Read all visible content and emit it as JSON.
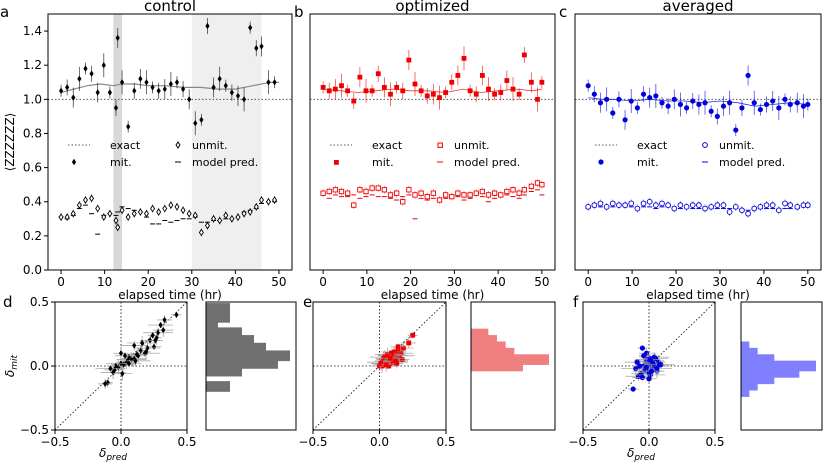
{
  "chart_data": [
    {
      "panel_label": "a",
      "type": "scatter",
      "title": "control",
      "xlabel": "elapsed time (hr)",
      "ylabel": "⟨ZZZZZZ⟩",
      "xlim": [
        -3,
        53
      ],
      "ylim": [
        0,
        1.5
      ],
      "xticks": [
        "0",
        "10",
        "20",
        "30",
        "40",
        "50"
      ],
      "yticks": [
        "0.0",
        "0.2",
        "0.4",
        "0.6",
        "0.8",
        "1.0",
        "1.2",
        "1.4"
      ],
      "color": "#000000",
      "shaded_regions": [
        [
          12,
          14
        ],
        [
          30,
          46
        ]
      ],
      "exact": 1.0,
      "legend": {
        "exact": "exact",
        "unmit": "unmit.",
        "mit": "mit.",
        "model": "model pred."
      },
      "x": [
        0,
        1.4,
        2.8,
        4.2,
        5.6,
        7,
        8.4,
        9.8,
        11.2,
        12.6,
        13,
        14,
        15.4,
        16.8,
        18.2,
        19.6,
        21,
        22.4,
        23.8,
        25.2,
        26.6,
        28,
        29.4,
        30.8,
        32.2,
        33.6,
        35,
        36.4,
        37.8,
        39.2,
        40.6,
        42,
        43.4,
        44.8,
        46,
        47.6,
        49
      ],
      "mit": [
        1.05,
        1.07,
        1.01,
        1.12,
        1.18,
        1.15,
        1.04,
        1.2,
        1.04,
        0.95,
        1.36,
        1.1,
        0.84,
        1.05,
        1.12,
        1.1,
        1.07,
        1.05,
        1.06,
        1.09,
        1.1,
        1.06,
        1.0,
        0.86,
        0.88,
        1.43,
        1.07,
        1.12,
        1.08,
        1.04,
        1.02,
        1.0,
        1.42,
        1.3,
        1.31,
        1.1,
        1.1
      ],
      "unmit": [
        0.31,
        0.31,
        0.33,
        0.38,
        0.41,
        0.42,
        0.36,
        0.31,
        0.33,
        0.29,
        0.25,
        0.35,
        0.31,
        0.33,
        0.34,
        0.33,
        0.36,
        0.34,
        0.36,
        0.38,
        0.37,
        0.35,
        0.33,
        0.32,
        0.22,
        0.26,
        0.3,
        0.29,
        0.32,
        0.3,
        0.31,
        0.33,
        0.34,
        0.37,
        0.41,
        0.4,
        0.41
      ],
      "model_x": [
        0,
        3,
        6,
        9,
        12,
        14,
        17,
        20,
        24,
        28,
        32,
        36,
        40,
        44,
        48,
        50
      ],
      "model": [
        1.04,
        1.06,
        1.08,
        1.09,
        1.08,
        1.09,
        1.09,
        1.08,
        1.08,
        1.07,
        1.07,
        1.06,
        1.06,
        1.08,
        1.1,
        1.1
      ],
      "model_unmit": [
        0.31,
        0.3,
        0.32,
        0.36,
        0.38,
        0.33,
        0.21,
        0.32,
        0.33,
        0.32,
        0.34,
        0.37,
        0.36,
        0.35,
        0.34,
        0.31,
        0.27,
        0.27,
        0.29,
        0.28,
        0.29,
        0.3,
        0.3,
        0.31,
        0.28,
        0.28,
        0.29,
        0.29,
        0.3,
        0.3,
        0.31,
        0.34,
        0.35,
        0.36,
        0.39,
        0.4,
        0.4
      ]
    },
    {
      "panel_label": "b",
      "type": "scatter",
      "title": "optimized",
      "xlabel": "elapsed time (hr)",
      "xlim": [
        -3,
        53
      ],
      "ylim": [
        0,
        1.5
      ],
      "xticks": [
        "0",
        "10",
        "20",
        "30",
        "40",
        "50"
      ],
      "color": "#ee0000",
      "exact": 1.0,
      "legend": {
        "exact": "exact",
        "unmit": "unmit.",
        "mit": "mit.",
        "model": "model pred."
      },
      "x": [
        0,
        1.4,
        2.8,
        4.2,
        5.6,
        7,
        8.4,
        9.8,
        11.2,
        12.6,
        14,
        15.4,
        16.8,
        18.2,
        19.6,
        21,
        22.4,
        23.8,
        25.2,
        26.6,
        28,
        29.4,
        30.8,
        32.2,
        33.6,
        35,
        36.4,
        37.8,
        39.2,
        40.6,
        42,
        43.4,
        44.8,
        46,
        47.6,
        49,
        50
      ],
      "mit": [
        1.07,
        1.05,
        1.06,
        1.08,
        1.05,
        0.99,
        1.13,
        1.05,
        1.05,
        1.15,
        1.07,
        1.03,
        1.07,
        1.05,
        1.23,
        1.09,
        1.05,
        1.02,
        1.03,
        1.01,
        1.04,
        1.1,
        1.14,
        1.24,
        1.05,
        1.03,
        1.14,
        1.06,
        1.03,
        1.04,
        1.11,
        1.06,
        1.03,
        1.26,
        1.1,
        1.0,
        1.1
      ],
      "unmit": [
        0.45,
        0.46,
        0.47,
        0.46,
        0.45,
        0.38,
        0.47,
        0.46,
        0.48,
        0.48,
        0.47,
        0.44,
        0.45,
        0.4,
        0.47,
        0.44,
        0.45,
        0.43,
        0.45,
        0.41,
        0.44,
        0.43,
        0.45,
        0.44,
        0.44,
        0.45,
        0.46,
        0.44,
        0.45,
        0.44,
        0.46,
        0.47,
        0.45,
        0.47,
        0.49,
        0.51,
        0.5
      ],
      "model_x": [
        0,
        4,
        8,
        12,
        16,
        20,
        24,
        28,
        32,
        36,
        40,
        44,
        48,
        50
      ],
      "model": [
        1.06,
        1.05,
        1.04,
        1.05,
        1.06,
        1.05,
        1.05,
        1.04,
        1.06,
        1.04,
        1.05,
        1.06,
        1.05,
        1.06
      ],
      "model_unmit": [
        0.44,
        0.42,
        0.44,
        0.43,
        0.43,
        0.44,
        0.42,
        0.43,
        0.44,
        0.43,
        0.43,
        0.42,
        0.41,
        0.43,
        0.44,
        0.3,
        0.42,
        0.41,
        0.42,
        0.4,
        0.42,
        0.42,
        0.43,
        0.41,
        0.42,
        0.44,
        0.43,
        0.4,
        0.42,
        0.43,
        0.44,
        0.43,
        0.42,
        0.44,
        0.46,
        0.47,
        0.44
      ]
    },
    {
      "panel_label": "c",
      "type": "scatter",
      "title": "averaged",
      "xlabel": "elapsed time (hr)",
      "xlim": [
        -3,
        53
      ],
      "ylim": [
        0,
        1.5
      ],
      "xticks": [
        "0",
        "10",
        "20",
        "30",
        "40",
        "50"
      ],
      "color": "#0000dd",
      "exact": 1.0,
      "legend": {
        "exact": "exact",
        "unmit": "unmit.",
        "mit": "mit.",
        "model": "model pred."
      },
      "x": [
        0,
        1.4,
        2.8,
        4.2,
        5.6,
        7,
        8.4,
        9.8,
        11.2,
        12.6,
        14,
        15.4,
        16.8,
        18.2,
        19.6,
        21,
        22.4,
        23.8,
        25.2,
        26.6,
        28,
        29.4,
        30.8,
        32.2,
        33.6,
        35,
        36.4,
        37.8,
        39.2,
        40.6,
        42,
        43.4,
        44.8,
        46,
        47.6,
        49,
        50
      ],
      "mit": [
        1.08,
        1.03,
        0.98,
        1.0,
        0.92,
        1.0,
        0.88,
        0.99,
        0.95,
        1.03,
        1.01,
        1.02,
        0.98,
        0.96,
        1.0,
        0.97,
        0.95,
        0.99,
        0.97,
        0.98,
        0.93,
        0.9,
        0.96,
        0.98,
        0.82,
        0.95,
        1.14,
        0.98,
        0.94,
        0.97,
        0.99,
        0.95,
        1.0,
        0.97,
        0.98,
        0.96,
        0.97
      ],
      "unmit": [
        0.37,
        0.38,
        0.39,
        0.37,
        0.39,
        0.38,
        0.38,
        0.39,
        0.36,
        0.39,
        0.4,
        0.38,
        0.39,
        0.38,
        0.36,
        0.38,
        0.37,
        0.38,
        0.38,
        0.36,
        0.37,
        0.38,
        0.38,
        0.34,
        0.37,
        0.35,
        0.33,
        0.36,
        0.37,
        0.38,
        0.38,
        0.35,
        0.39,
        0.38,
        0.37,
        0.38,
        0.38
      ],
      "model_x": [
        0,
        3,
        6,
        10,
        14,
        18,
        22,
        26,
        30,
        34,
        38,
        42,
        46,
        50
      ],
      "model": [
        1.01,
        1.0,
        1.0,
        0.99,
        1.0,
        0.99,
        0.99,
        0.98,
        0.99,
        0.98,
        0.96,
        0.97,
        0.98,
        0.97
      ],
      "model_unmit": [
        0.36,
        0.37,
        0.37,
        0.37,
        0.37,
        0.38,
        0.37,
        0.37,
        0.36,
        0.37,
        0.37,
        0.36,
        0.37,
        0.37,
        0.36,
        0.36,
        0.37,
        0.36,
        0.36,
        0.37,
        0.36,
        0.36,
        0.36,
        0.36,
        0.36,
        0.35,
        0.35,
        0.36,
        0.36,
        0.36,
        0.36,
        0.35,
        0.36,
        0.36,
        0.36,
        0.37,
        0.37
      ]
    },
    {
      "panel_label": "d",
      "type": "scatter",
      "xlabel": "δpred",
      "ylabel": "δmit",
      "xlim": [
        -0.5,
        0.5
      ],
      "ylim": [
        -0.5,
        0.5
      ],
      "xticks": [
        "−0.5",
        "0.0",
        "0.5"
      ],
      "yticks": [
        "−0.5",
        "0.0",
        "0.5"
      ],
      "color": "#000000",
      "x": [
        0.42,
        0.33,
        0.32,
        0.3,
        0.28,
        0.27,
        0.25,
        0.22,
        0.2,
        0.18,
        0.15,
        0.13,
        0.12,
        0.1,
        0.08,
        0.06,
        0.05,
        0.04,
        0.02,
        0.0,
        -0.02,
        -0.04,
        -0.05,
        -0.06,
        -0.08,
        -0.1,
        0.0,
        0.03,
        0.1,
        0.16,
        0.24,
        -0.12,
        0.01,
        0.06,
        0.11,
        0.19,
        0.26
      ],
      "y": [
        0.4,
        0.36,
        0.28,
        0.32,
        0.26,
        0.22,
        0.15,
        0.2,
        0.14,
        0.1,
        0.12,
        0.08,
        0.09,
        0.06,
        0.05,
        0.07,
        0.04,
        0.03,
        0.01,
        0.02,
        -0.01,
        0.0,
        -0.03,
        -0.05,
        -0.02,
        -0.13,
        0.1,
        0.08,
        0.16,
        0.18,
        0.24,
        -0.14,
        -0.06,
        0.02,
        0.04,
        0.11,
        0.2
      ],
      "hist": {
        "color": "#707070",
        "bins": [
          0.45,
          0.38,
          0.32,
          0.26,
          0.2,
          0.14,
          0.08,
          0.02,
          -0.04,
          -0.1,
          -0.16
        ],
        "counts": [
          2,
          2,
          1,
          3,
          4,
          5,
          7,
          6,
          3,
          0,
          2
        ]
      }
    },
    {
      "panel_label": "e",
      "type": "scatter",
      "xlabel": "",
      "xlim": [
        -0.5,
        0.5
      ],
      "ylim": [
        -0.5,
        0.5
      ],
      "xticks": [
        "−0.5",
        "0.0",
        "0.5"
      ],
      "color": "#ee0000",
      "x": [
        0.25,
        0.22,
        0.18,
        0.16,
        0.15,
        0.14,
        0.13,
        0.12,
        0.11,
        0.1,
        0.09,
        0.08,
        0.08,
        0.07,
        0.06,
        0.05,
        0.05,
        0.04,
        0.03,
        0.02,
        0.02,
        0.01,
        0.0,
        0.06,
        0.1,
        0.13,
        0.03,
        0.07,
        0.11,
        0.04,
        0.09,
        0.17,
        0.01,
        0.12,
        0.08,
        0.05,
        0.14
      ],
      "y": [
        0.24,
        0.18,
        0.14,
        0.1,
        0.08,
        0.12,
        0.06,
        0.09,
        0.05,
        0.08,
        0.04,
        0.07,
        0.02,
        0.05,
        0.03,
        0.06,
        0.01,
        0.04,
        0.02,
        0.03,
        0.0,
        0.01,
        0.0,
        0.09,
        0.03,
        0.02,
        0.06,
        0.0,
        0.11,
        0.07,
        0.1,
        0.05,
        0.02,
        0.04,
        0.06,
        0.01,
        0.15
      ],
      "hist": {
        "color": "#f08080",
        "bins": [
          0.25,
          0.2,
          0.15,
          0.1,
          0.05,
          0.0,
          -0.05
        ],
        "counts": [
          2,
          3,
          4,
          5,
          9,
          6,
          0
        ]
      }
    },
    {
      "panel_label": "f",
      "type": "scatter",
      "xlabel": "δpred",
      "xlim": [
        -0.5,
        0.5
      ],
      "ylim": [
        -0.5,
        0.5
      ],
      "xticks": [
        "−0.5",
        "0.0",
        "0.5"
      ],
      "color": "#0000dd",
      "x": [
        -0.05,
        -0.04,
        -0.03,
        -0.02,
        -0.01,
        0.0,
        0.01,
        0.02,
        0.03,
        0.04,
        0.05,
        0.06,
        -0.06,
        -0.08,
        -0.1,
        -0.12,
        -0.02,
        0.0,
        0.02,
        0.04,
        0.07,
        0.09,
        -0.03,
        -0.01,
        0.01,
        0.03,
        -0.07,
        -0.05,
        0.05,
        0.06,
        -0.04,
        0.0,
        0.02,
        -0.09,
        0.08,
        -0.02,
        0.01
      ],
      "y": [
        0.14,
        0.0,
        -0.02,
        0.04,
        -0.04,
        0.02,
        0.06,
        -0.01,
        0.03,
        0.0,
        0.02,
        -0.04,
        -0.06,
        -0.08,
        -0.02,
        -0.18,
        0.1,
        -0.05,
        0.04,
        0.07,
        0.03,
        0.01,
        -0.03,
        0.05,
        -0.07,
        0.02,
        0.0,
        -0.09,
        0.06,
        -0.02,
        0.08,
        -0.1,
        -0.04,
        0.03,
        0.01,
        -0.01,
        0.05
      ],
      "hist": {
        "color": "#8080ff",
        "bins": [
          0.15,
          0.1,
          0.05,
          0.0,
          -0.05,
          -0.1,
          -0.15,
          -0.2
        ],
        "counts": [
          1,
          2,
          4,
          9,
          7,
          4,
          2,
          1
        ]
      }
    }
  ]
}
